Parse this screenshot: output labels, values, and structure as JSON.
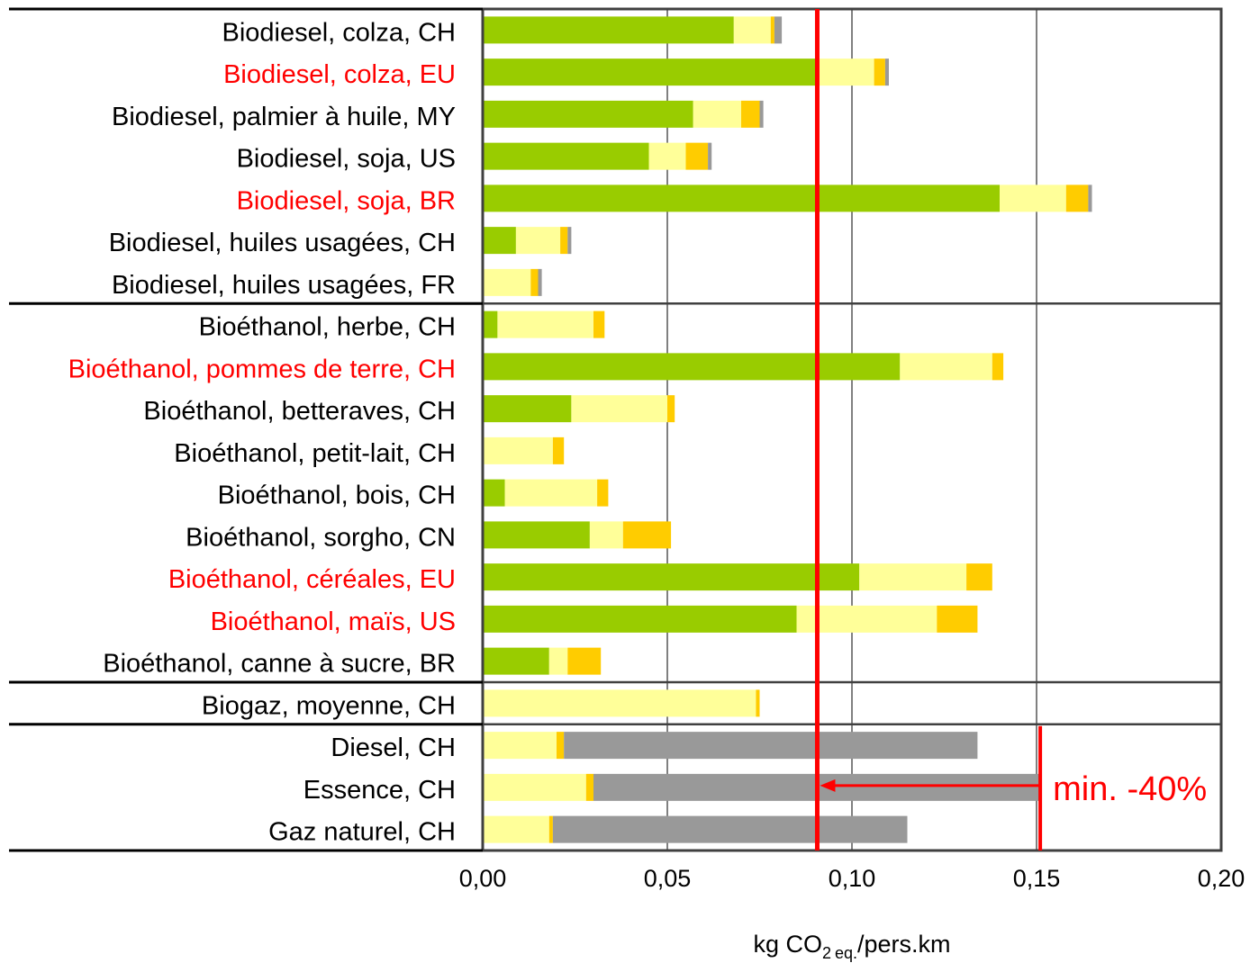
{
  "chart_data": {
    "type": "bar",
    "orientation": "horizontal",
    "stacked": true,
    "categories": [
      {
        "label": "Biodiesel, colza, CH",
        "highlight": false
      },
      {
        "label": "Biodiesel, colza, EU",
        "highlight": true
      },
      {
        "label": "Biodiesel, palmier à huile, MY",
        "highlight": false
      },
      {
        "label": "Biodiesel, soja, US",
        "highlight": false
      },
      {
        "label": "Biodiesel, soja, BR",
        "highlight": true
      },
      {
        "label": "Biodiesel, huiles usagées, CH",
        "highlight": false
      },
      {
        "label": "Biodiesel, huiles usagées, FR",
        "highlight": false
      },
      {
        "label": "Bioéthanol, herbe, CH",
        "highlight": false
      },
      {
        "label": "Bioéthanol, pommes de terre, CH",
        "highlight": true
      },
      {
        "label": "Bioéthanol, betteraves, CH",
        "highlight": false
      },
      {
        "label": "Bioéthanol, petit-lait, CH",
        "highlight": false
      },
      {
        "label": "Bioéthanol, bois, CH",
        "highlight": false
      },
      {
        "label": "Bioéthanol, sorgho, CN",
        "highlight": false
      },
      {
        "label": "Bioéthanol, céréales, EU",
        "highlight": true
      },
      {
        "label": "Bioéthanol, maïs, US",
        "highlight": true
      },
      {
        "label": "Bioéthanol, canne à sucre, BR",
        "highlight": false
      },
      {
        "label": "Biogaz, moyenne, CH",
        "highlight": false
      },
      {
        "label": "Diesel, CH",
        "highlight": false
      },
      {
        "label": "Essence, CH",
        "highlight": false
      },
      {
        "label": "Gaz naturel, CH",
        "highlight": false
      }
    ],
    "series": [
      {
        "color": "#99cc00",
        "values": [
          0.068,
          0.091,
          0.057,
          0.045,
          0.14,
          0.009,
          0.0,
          0.004,
          0.113,
          0.024,
          0.0,
          0.006,
          0.029,
          0.102,
          0.085,
          0.018,
          0.0,
          0.0,
          0.0,
          0.0
        ]
      },
      {
        "color": "#ffff99",
        "values": [
          0.01,
          0.015,
          0.013,
          0.01,
          0.018,
          0.012,
          0.013,
          0.026,
          0.025,
          0.026,
          0.019,
          0.025,
          0.009,
          0.029,
          0.038,
          0.005,
          0.074,
          0.02,
          0.028,
          0.018
        ]
      },
      {
        "color": "#ffcc00",
        "values": [
          0.001,
          0.003,
          0.005,
          0.006,
          0.006,
          0.002,
          0.002,
          0.003,
          0.003,
          0.002,
          0.003,
          0.003,
          0.013,
          0.007,
          0.011,
          0.009,
          0.001,
          0.002,
          0.002,
          0.001
        ]
      },
      {
        "color": "#999999",
        "values": [
          0.002,
          0.001,
          0.001,
          0.001,
          0.001,
          0.001,
          0.001,
          0.0,
          0.0,
          0.0,
          0.0,
          0.0,
          0.0,
          0.0,
          0.0,
          0.0,
          0.0,
          0.112,
          0.121,
          0.096
        ]
      }
    ],
    "group_breaks_after": [
      6,
      15,
      16
    ],
    "x_ticks": [
      "0,00",
      "0,05",
      "0,10",
      "0,15",
      "0,20"
    ],
    "xlim": [
      0,
      0.2
    ],
    "grid": true,
    "x_label_main": "kg CO",
    "x_label_sub1": "2",
    "x_label_sub2": "eq.",
    "x_label_rest": "/pers.km",
    "reference_value_essence": 0.151,
    "threshold_value": 0.0906,
    "annotation": "min. -40%",
    "colors": {
      "highlight": "#ff0000",
      "threshold": "#ff0000",
      "text": "#000000",
      "grid": "#808080",
      "frame": "#404040"
    }
  }
}
